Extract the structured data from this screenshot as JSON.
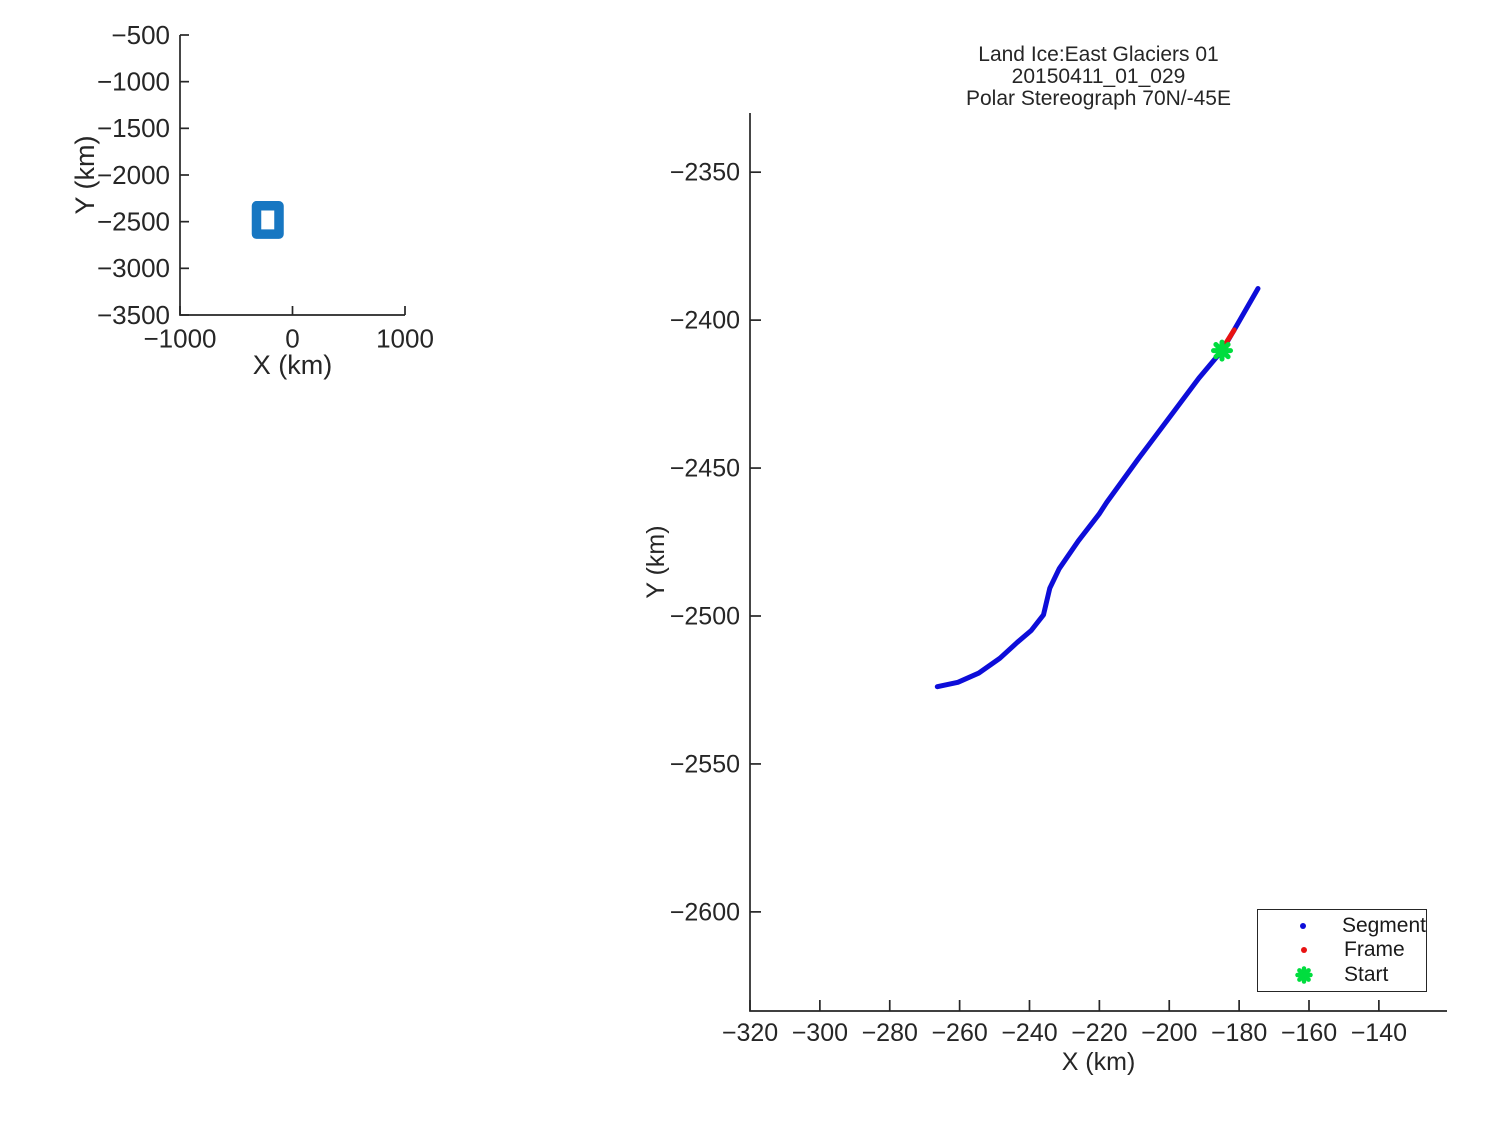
{
  "figure": {
    "background": "#ffffff",
    "axis_color": "#262626",
    "text_color": "#262626"
  },
  "chart_data": [
    {
      "id": "overview",
      "type": "line",
      "title": "",
      "xlabel": "X (km)",
      "ylabel": "Y (km)",
      "xlim": [
        -1000,
        1000
      ],
      "ylim": [
        -3500,
        -500
      ],
      "xticks": [
        -1000,
        0,
        1000
      ],
      "yticks": [
        -500,
        -1000,
        -1500,
        -2000,
        -2500,
        -3000,
        -3500
      ],
      "grid": false,
      "series": [
        {
          "name": "coverage-extent-box",
          "type": "rect",
          "x0": -320,
          "x1": -120,
          "y0": -2633,
          "y1": -2330,
          "color": "#1777c2",
          "stroke_width": 9.5
        }
      ]
    },
    {
      "id": "track",
      "type": "line",
      "title_lines": [
        "Land Ice:East Glaciers 01",
        "20150411_01_029",
        "Polar Stereograph 70N/-45E"
      ],
      "xlabel": "X (km)",
      "ylabel": "Y (km)",
      "xlim": [
        -320,
        -120.5
      ],
      "ylim": [
        -2633.5,
        -2330
      ],
      "xticks": [
        -320,
        -300,
        -280,
        -260,
        -240,
        -220,
        -200,
        -180,
        -160,
        -140
      ],
      "yticks": [
        -2350,
        -2400,
        -2450,
        -2500,
        -2550,
        -2600
      ],
      "grid": false,
      "series": [
        {
          "name": "segment-track",
          "type": "path",
          "color": "#0d0dd9",
          "stroke_width": 5,
          "points": [
            [
              -266.4,
              -2523.9
            ],
            [
              -260.5,
              -2522.4
            ],
            [
              -254.5,
              -2519.3
            ],
            [
              -248.5,
              -2514.3
            ],
            [
              -243.5,
              -2508.9
            ],
            [
              -239.5,
              -2504.9
            ],
            [
              -236.0,
              -2499.6
            ],
            [
              -234.2,
              -2490.6
            ],
            [
              -231.5,
              -2484.0
            ],
            [
              -226.0,
              -2474.6
            ],
            [
              -220.1,
              -2465.6
            ],
            [
              -217.9,
              -2461.6
            ],
            [
              -209.0,
              -2447.1
            ],
            [
              -200.0,
              -2433.0
            ],
            [
              -191.5,
              -2419.6
            ],
            [
              -184.9,
              -2410.3
            ],
            [
              -181.4,
              -2403.3
            ],
            [
              -174.6,
              -2389.3
            ]
          ]
        },
        {
          "name": "frame-track",
          "type": "path",
          "color": "#e81212",
          "stroke_width": 5,
          "points": [
            [
              -183.9,
              -2408.0
            ],
            [
              -181.4,
              -2403.3
            ]
          ]
        },
        {
          "name": "start-marker",
          "type": "asterisk",
          "color": "#00dd3e",
          "x": -184.9,
          "y": -2410.3,
          "radius": 8.5,
          "stroke_width": 5
        }
      ],
      "legend": {
        "position": "lower-right",
        "entries": [
          {
            "label": "Segment",
            "marker": "dot",
            "color": "#0d0dd9"
          },
          {
            "label": "Frame",
            "marker": "dot",
            "color": "#e81212"
          },
          {
            "label": "Start",
            "marker": "asterisk",
            "color": "#00dd3e"
          }
        ]
      }
    }
  ]
}
